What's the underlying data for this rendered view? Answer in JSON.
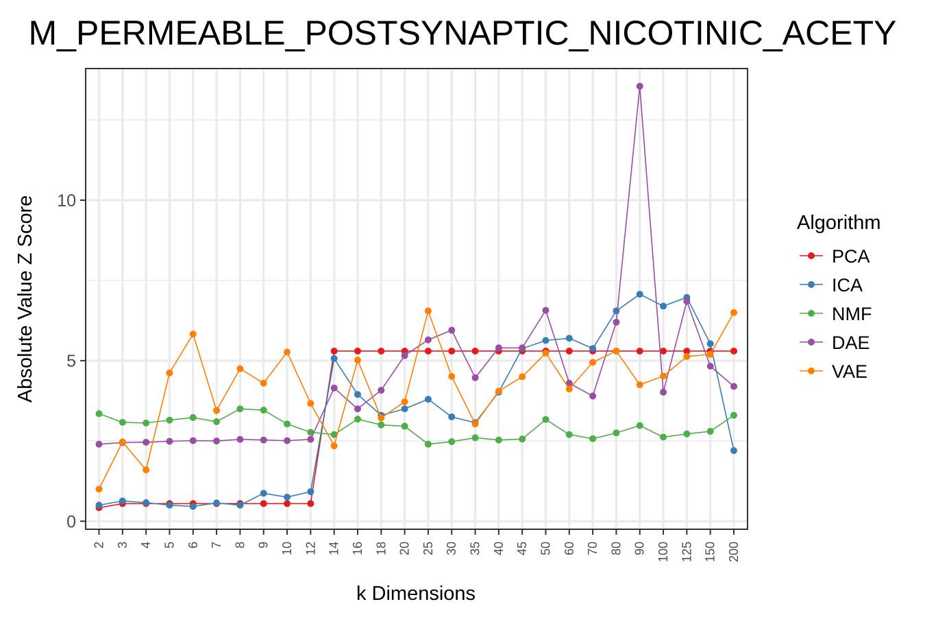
{
  "chart_data": {
    "type": "line",
    "title": "M_PERMEABLE_POSTSYNAPTIC_NICOTINIC_ACETY",
    "xlabel": "k Dimensions",
    "ylabel": "Absolute Value Z Score",
    "categories": [
      "2",
      "3",
      "4",
      "5",
      "6",
      "7",
      "8",
      "9",
      "10",
      "12",
      "14",
      "16",
      "18",
      "20",
      "25",
      "30",
      "35",
      "40",
      "45",
      "50",
      "60",
      "70",
      "80",
      "90",
      "100",
      "125",
      "150",
      "200"
    ],
    "y_ticks": [
      "0",
      "5",
      "10"
    ],
    "ylim": [
      -0.25,
      14.1
    ],
    "grid": true,
    "legend": {
      "title": "Algorithm",
      "position": "right"
    },
    "series": [
      {
        "name": "PCA",
        "color": "#e41a1c",
        "values": [
          0.42,
          0.55,
          0.55,
          0.55,
          0.55,
          0.55,
          0.55,
          0.55,
          0.55,
          0.55,
          5.3,
          5.3,
          5.3,
          5.3,
          5.3,
          5.3,
          5.3,
          5.3,
          5.3,
          5.3,
          5.3,
          5.3,
          5.3,
          5.3,
          5.3,
          5.3,
          5.3,
          5.3
        ]
      },
      {
        "name": "ICA",
        "color": "#377eb8",
        "values": [
          0.5,
          0.63,
          0.58,
          0.5,
          0.46,
          0.57,
          0.5,
          0.87,
          0.75,
          0.92,
          5.07,
          3.95,
          3.3,
          3.5,
          3.8,
          3.25,
          3.07,
          4.02,
          5.38,
          5.63,
          5.7,
          5.38,
          6.55,
          7.07,
          6.7,
          6.97,
          5.53,
          2.2
        ]
      },
      {
        "name": "NMF",
        "color": "#4daf4a",
        "values": [
          3.35,
          3.08,
          3.06,
          3.15,
          3.23,
          3.1,
          3.5,
          3.46,
          3.03,
          2.77,
          2.7,
          3.18,
          3.0,
          2.96,
          2.4,
          2.48,
          2.6,
          2.53,
          2.56,
          3.17,
          2.7,
          2.57,
          2.75,
          2.98,
          2.62,
          2.72,
          2.8,
          3.3
        ]
      },
      {
        "name": "DAE",
        "color": "#984ea3",
        "values": [
          2.4,
          2.45,
          2.46,
          2.49,
          2.51,
          2.5,
          2.55,
          2.53,
          2.51,
          2.55,
          4.15,
          3.5,
          4.08,
          5.16,
          5.65,
          5.95,
          4.47,
          5.4,
          5.4,
          6.57,
          4.3,
          3.9,
          6.2,
          13.55,
          4.02,
          6.85,
          4.83,
          4.2
        ]
      },
      {
        "name": "VAE",
        "color": "#ff7f00",
        "values": [
          1.0,
          2.47,
          1.6,
          4.62,
          5.83,
          3.45,
          4.75,
          4.3,
          5.27,
          3.67,
          2.35,
          5.02,
          3.22,
          3.72,
          6.55,
          4.51,
          3.03,
          4.05,
          4.5,
          5.24,
          4.12,
          4.95,
          5.3,
          4.25,
          4.52,
          5.13,
          5.2,
          6.5
        ]
      }
    ]
  }
}
